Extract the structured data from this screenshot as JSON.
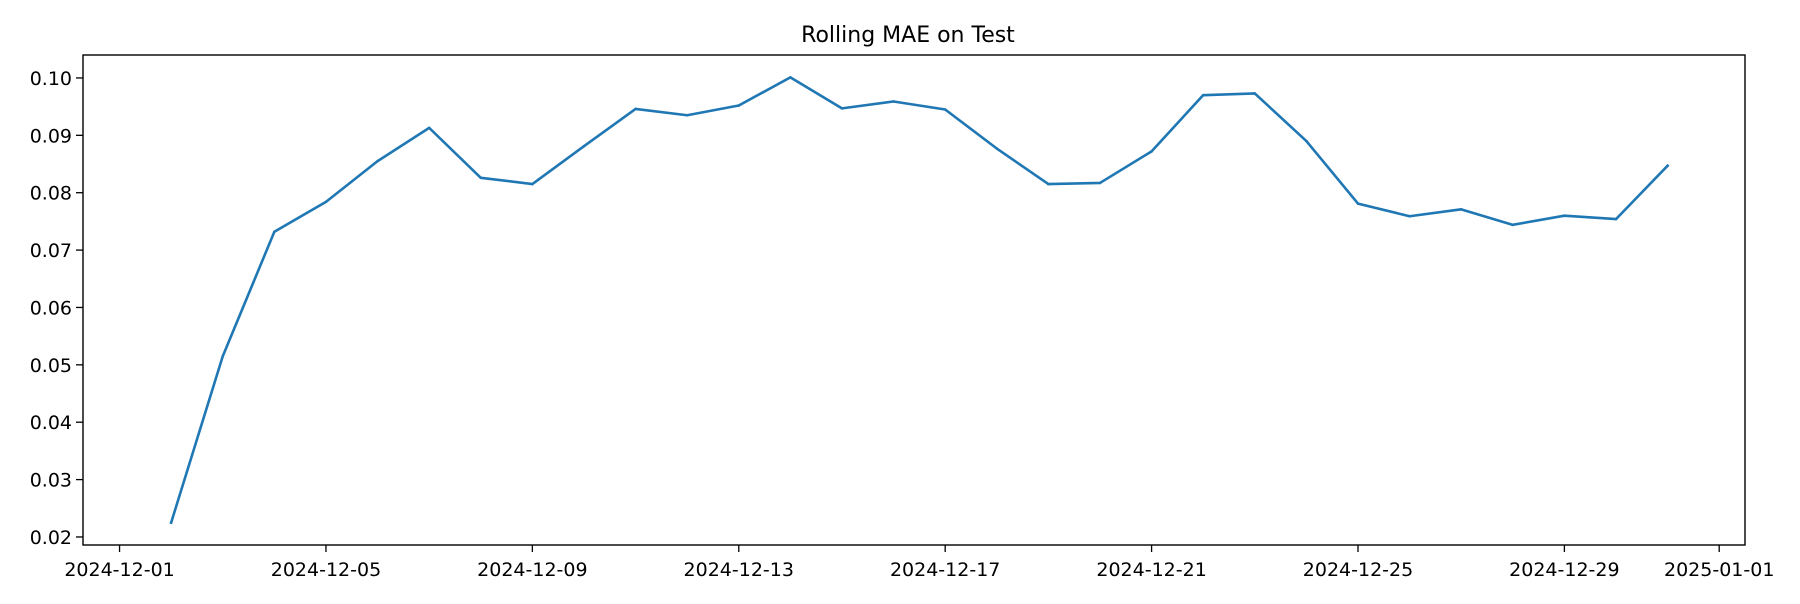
{
  "chart_data": {
    "type": "line",
    "title": "Rolling MAE on Test",
    "xlabel": "",
    "ylabel": "",
    "x": [
      "2024-12-02",
      "2024-12-03",
      "2024-12-04",
      "2024-12-05",
      "2024-12-06",
      "2024-12-07",
      "2024-12-08",
      "2024-12-09",
      "2024-12-10",
      "2024-12-11",
      "2024-12-12",
      "2024-12-13",
      "2024-12-14",
      "2024-12-15",
      "2024-12-16",
      "2024-12-17",
      "2024-12-18",
      "2024-12-19",
      "2024-12-20",
      "2024-12-21",
      "2024-12-22",
      "2024-12-23",
      "2024-12-24",
      "2024-12-25",
      "2024-12-26",
      "2024-12-27",
      "2024-12-28",
      "2024-12-29",
      "2024-12-30",
      "2024-12-31"
    ],
    "series": [
      {
        "color": "#1f77b4",
        "values": [
          0.0225,
          0.0515,
          0.0732,
          0.0784,
          0.0855,
          0.0913,
          0.0826,
          0.0815,
          0.0881,
          0.0946,
          0.0935,
          0.0952,
          0.1001,
          0.0947,
          0.0959,
          0.0945,
          0.0877,
          0.0815,
          0.0817,
          0.0872,
          0.097,
          0.0973,
          0.089,
          0.0781,
          0.0759,
          0.0771,
          0.0744,
          0.076,
          0.0754,
          0.0847
        ]
      }
    ],
    "ylim": [
      0.0186,
      0.104
    ],
    "xlim": [
      "2024-11-30T07:00",
      "2025-01-01T12:00"
    ],
    "yticks": [
      0.02,
      0.03,
      0.04,
      0.05,
      0.06,
      0.07,
      0.08,
      0.09,
      0.1
    ],
    "ytick_labels": [
      "0.02",
      "0.03",
      "0.04",
      "0.05",
      "0.06",
      "0.07",
      "0.08",
      "0.09",
      "0.10"
    ],
    "xticks": [
      "2024-12-01",
      "2024-12-05",
      "2024-12-09",
      "2024-12-13",
      "2024-12-17",
      "2024-12-21",
      "2024-12-25",
      "2024-12-29",
      "2025-01-01"
    ],
    "xtick_labels": [
      "2024-12-01",
      "2024-12-05",
      "2024-12-09",
      "2024-12-13",
      "2024-12-17",
      "2024-12-21",
      "2024-12-25",
      "2024-12-29",
      "2025-01-01"
    ],
    "grid": false,
    "legend": "none"
  }
}
